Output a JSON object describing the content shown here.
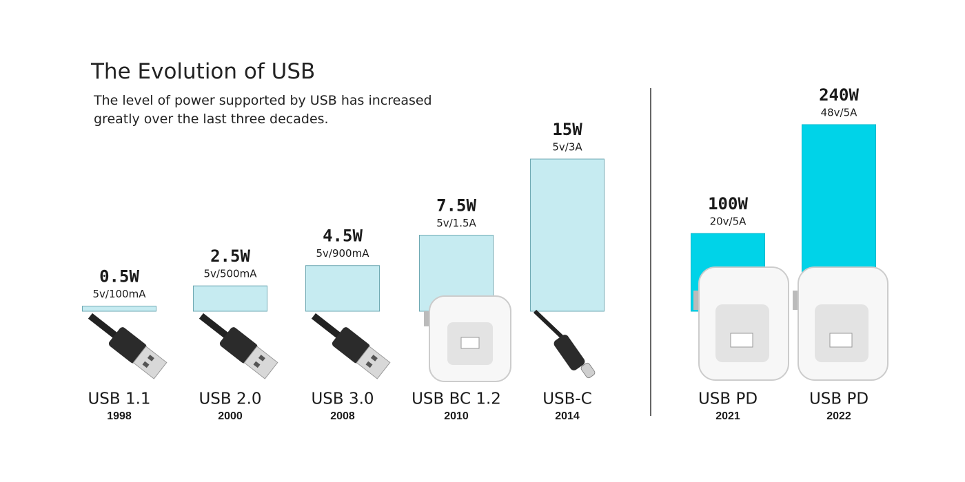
{
  "chart_data": [
    {
      "type": "bar",
      "title": "The Evolution of USB",
      "subtitle": "The level of power supported by USB has increased greatly over the last three decades.",
      "categories": [
        "USB 1.1",
        "USB 2.0",
        "USB 3.0",
        "USB BC 1.2",
        "USB-C"
      ],
      "years": [
        "1998",
        "2000",
        "2008",
        "2010",
        "2014"
      ],
      "values": [
        0.5,
        2.5,
        4.5,
        7.5,
        15
      ],
      "value_labels": [
        "0.5W",
        "2.5W",
        "4.5W",
        "7.5W",
        "15W"
      ],
      "specs": [
        "5v/100mA",
        "5v/500mA",
        "5v/900mA",
        "5v/1.5A",
        "5v/3A"
      ],
      "color": "#c6ebf1"
    },
    {
      "type": "bar",
      "categories": [
        "USB PD",
        "USB PD"
      ],
      "years": [
        "2021",
        "2022"
      ],
      "values": [
        100,
        240
      ],
      "value_labels": [
        "100W",
        "240W"
      ],
      "specs": [
        "20v/5A",
        "48v/5A"
      ],
      "color": "#00d3e8"
    }
  ]
}
